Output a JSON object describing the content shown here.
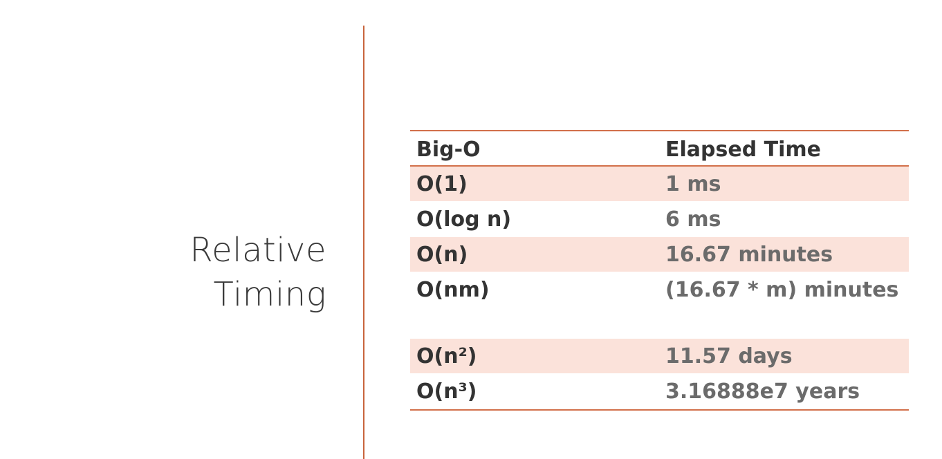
{
  "title": {
    "line1": "Relative",
    "line2": "Timing"
  },
  "table": {
    "headers": {
      "col1": "Big-O",
      "col2": "Elapsed Time"
    },
    "rows": [
      {
        "complexity": "O(1)",
        "time": "1 ms"
      },
      {
        "complexity": "O(log n)",
        "time": "6 ms"
      },
      {
        "complexity": "O(n)",
        "time": "16.67 minutes"
      },
      {
        "complexity": "O(nm)",
        "time": "(16.67 * m) minutes"
      },
      {
        "complexity": "O(n²)",
        "time": "11.57 days"
      },
      {
        "complexity": "O(n³)",
        "time": "3.16888e7 years"
      }
    ]
  },
  "colors": {
    "accent": "#d2704a",
    "row_shade": "#fbe2da",
    "title_text": "#3a3a3a",
    "value_text": "#6b6b6b"
  }
}
